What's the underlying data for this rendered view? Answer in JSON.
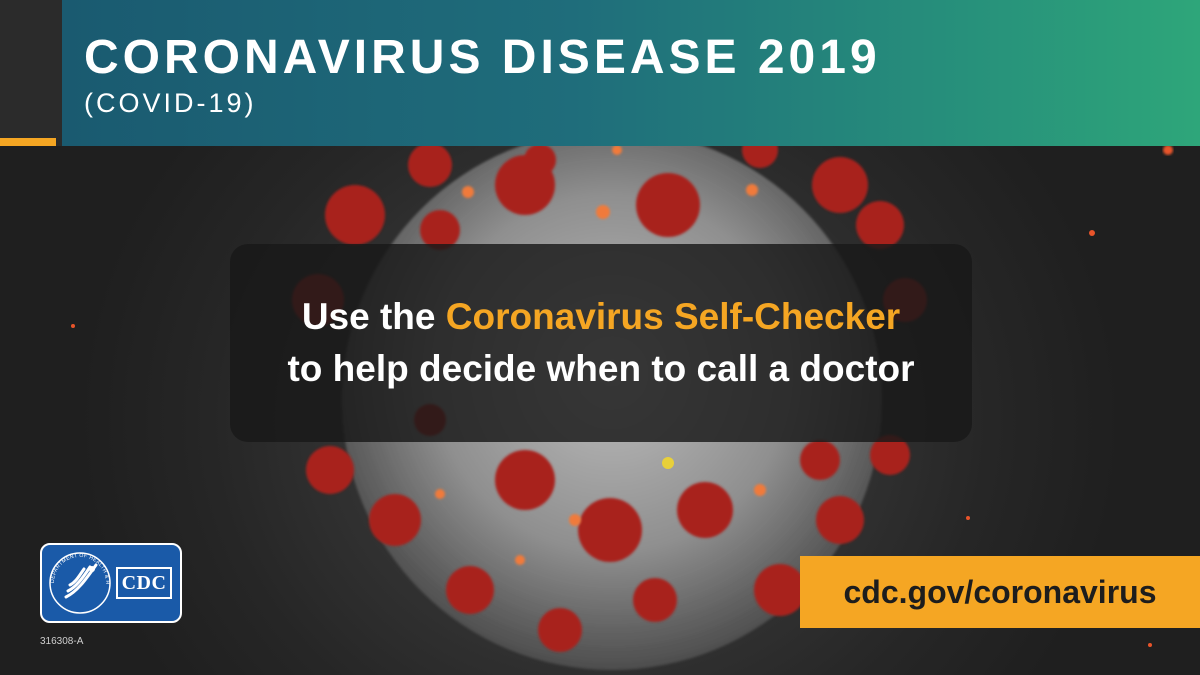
{
  "header": {
    "title": "CORONAVIRUS DISEASE 2019",
    "subtitle": "(COVID-19)"
  },
  "message": {
    "line1_prefix": "Use the ",
    "line1_highlight": "Coronavirus Self-Checker",
    "line2": "to help decide when to call a doctor"
  },
  "url": "cdc.gov/coronavirus",
  "logo": {
    "hhs_seal_text": "DEPARTMENT OF HEALTH & HUMAN SERVICES USA",
    "cdc_text": "CDC"
  },
  "code": "316308-A",
  "colors": {
    "accent": "#f5a623",
    "header_start": "#1a5a70",
    "header_end": "#2ea67a",
    "logo_blue": "#1a5aa8",
    "virus_red": "#a8231f",
    "virus_gray": "#9a9a9a"
  },
  "icons": [
    "coronavirus-illustration",
    "hhs-seal-icon",
    "cdc-logo-icon"
  ]
}
